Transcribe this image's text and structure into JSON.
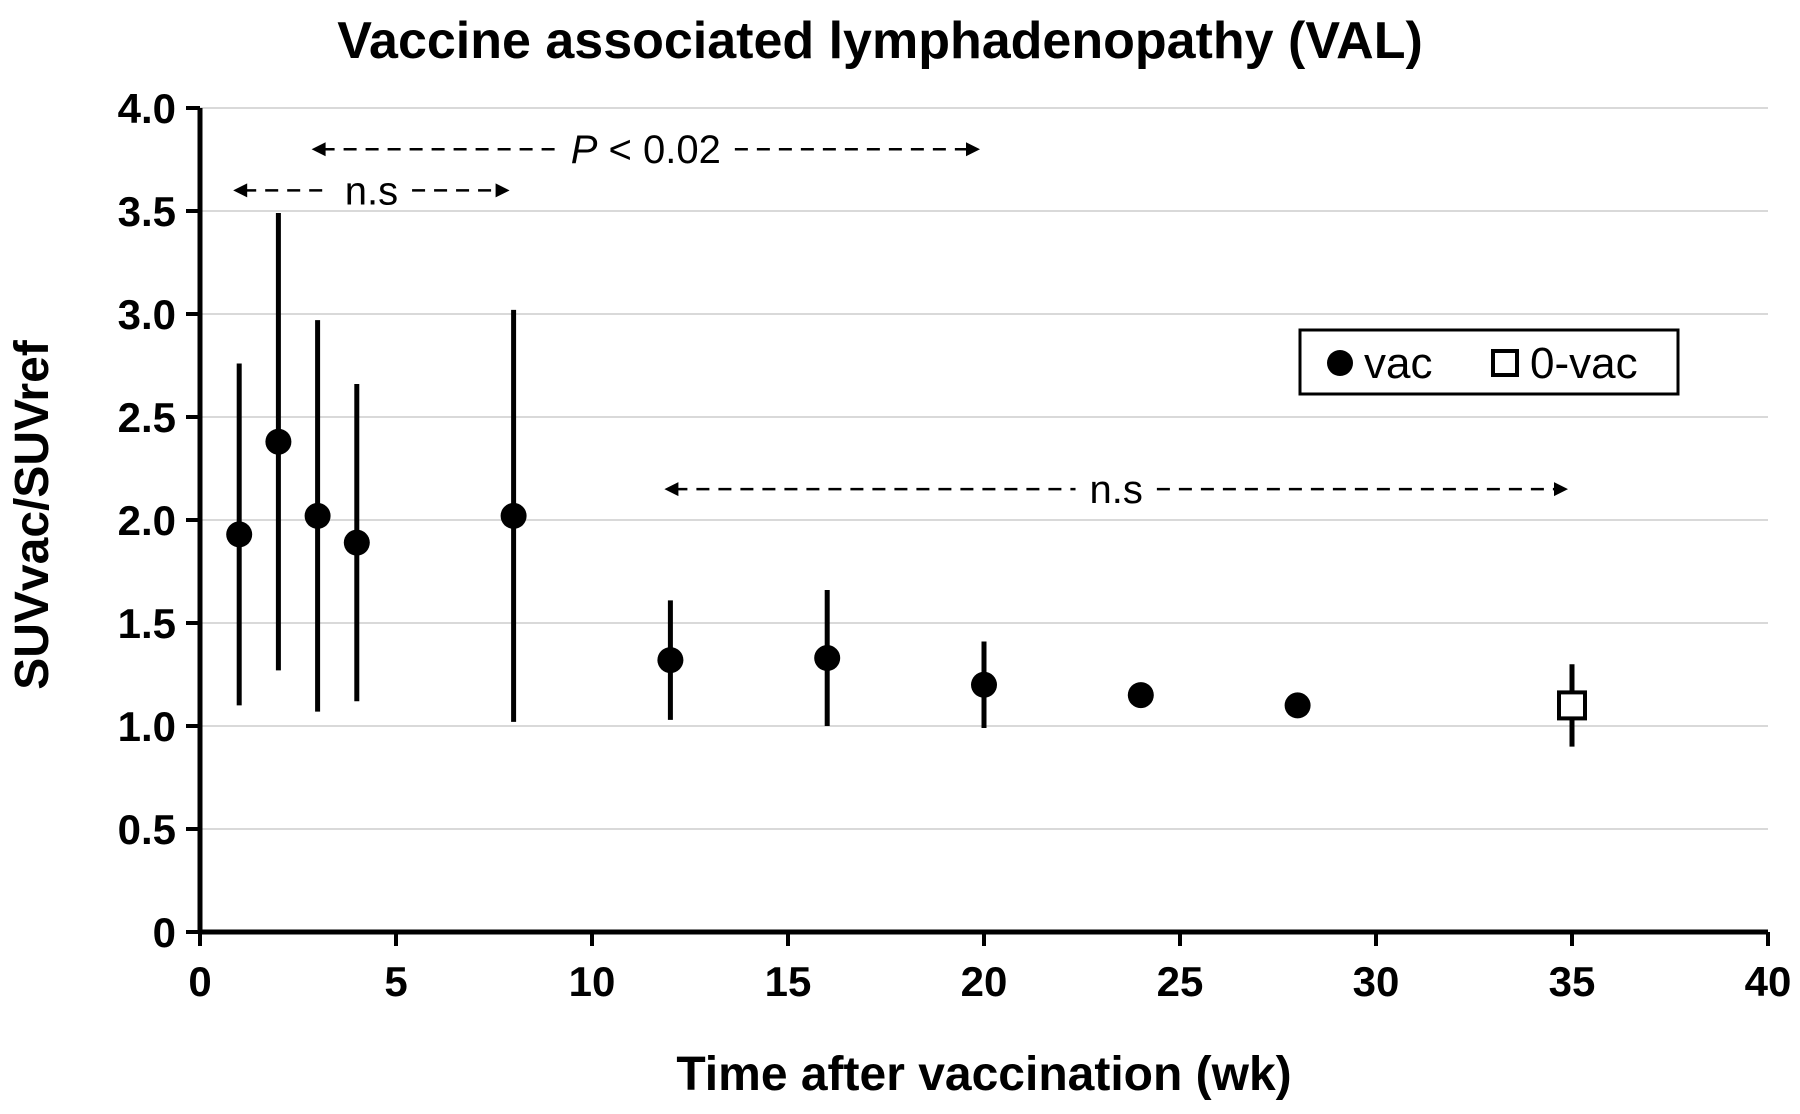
{
  "chart_data": {
    "type": "scatter",
    "title": "Vaccine associated lymphadenopathy (VAL)",
    "xlabel": "Time after vaccination (wk)",
    "ylabel": "SUVvac/SUVref",
    "xlim": [
      0,
      40
    ],
    "ylim": [
      0,
      4.0
    ],
    "x_ticks": [
      0,
      5,
      10,
      15,
      20,
      25,
      30,
      35,
      40
    ],
    "x_tick_labels": [
      "0",
      "5",
      "10",
      "15",
      "20",
      "25",
      "30",
      "35",
      "40"
    ],
    "y_ticks": [
      0,
      0.5,
      1.0,
      1.5,
      2.0,
      2.5,
      3.0,
      3.5,
      4.0
    ],
    "y_tick_labels": [
      "0",
      "0.5",
      "1.0",
      "1.5",
      "2.0",
      "2.5",
      "3.0",
      "3.5",
      "4.0"
    ],
    "grid": "horizontal",
    "legend_position": "right",
    "series": [
      {
        "name": "vac",
        "marker": "filled-circle",
        "color": "#000000",
        "points": [
          {
            "x": 1,
            "y": 1.93,
            "err_low": 1.1,
            "err_high": 2.76
          },
          {
            "x": 2,
            "y": 2.38,
            "err_low": 1.27,
            "err_high": 3.49
          },
          {
            "x": 3,
            "y": 2.02,
            "err_low": 1.07,
            "err_high": 2.97
          },
          {
            "x": 4,
            "y": 1.89,
            "err_low": 1.12,
            "err_high": 2.66
          },
          {
            "x": 8,
            "y": 2.02,
            "err_low": 1.02,
            "err_high": 3.02
          },
          {
            "x": 12,
            "y": 1.32,
            "err_low": 1.03,
            "err_high": 1.61
          },
          {
            "x": 16,
            "y": 1.33,
            "err_low": 1.0,
            "err_high": 1.66
          },
          {
            "x": 20,
            "y": 1.2,
            "err_low": 0.99,
            "err_high": 1.41
          },
          {
            "x": 24,
            "y": 1.15,
            "err_low": null,
            "err_high": null
          },
          {
            "x": 28,
            "y": 1.1,
            "err_low": null,
            "err_high": null
          }
        ]
      },
      {
        "name": "0-vac",
        "marker": "open-square",
        "color": "#000000",
        "points": [
          {
            "x": 35,
            "y": 1.1,
            "err_low": 0.9,
            "err_high": 1.3
          }
        ]
      }
    ],
    "annotations": [
      {
        "text_parts": [
          "P",
          " < 0.02"
        ],
        "italic_first": true,
        "x_from": 3,
        "x_to": 20,
        "y": 3.8
      },
      {
        "text_parts": [
          "n.s"
        ],
        "italic_first": false,
        "x_from": 1,
        "x_to": 8,
        "y": 3.6
      },
      {
        "text_parts": [
          "n.s"
        ],
        "italic_first": false,
        "x_from": 12,
        "x_to": 35,
        "y": 2.15
      }
    ]
  }
}
